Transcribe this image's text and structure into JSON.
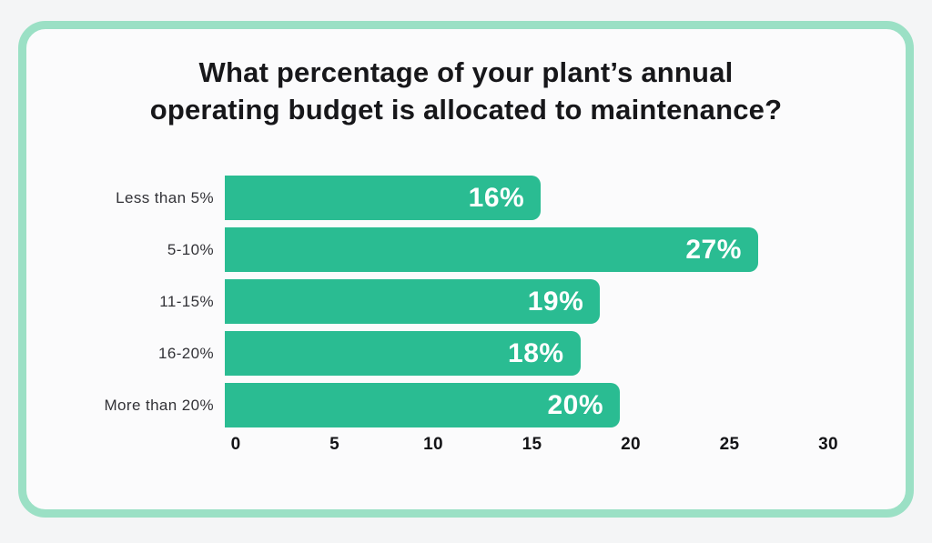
{
  "colors": {
    "background": "#f4f5f6",
    "card_background": "#fbfbfc",
    "card_border": "#9be0c5",
    "bar": "#2abc92",
    "title_text": "#17171a",
    "category_text": "#323237",
    "tick_text": "#141417",
    "value_text": "#ffffff"
  },
  "header": {
    "title_line1": "What percentage of your plant’s annual",
    "title_line2": "operating budget is allocated to maintenance?"
  },
  "chart_data": {
    "type": "bar",
    "orientation": "horizontal",
    "title": "What percentage of your plant’s annual operating budget is allocated to maintenance?",
    "categories": [
      "Less than 5%",
      "5-10%",
      "11-15%",
      "16-20%",
      "More than 20%"
    ],
    "values": [
      16,
      27,
      19,
      18,
      20
    ],
    "value_labels": [
      "16%",
      "27%",
      "19%",
      "18%",
      "20%"
    ],
    "x_ticks": [
      "0",
      "5",
      "10",
      "15",
      "20",
      "25",
      "30"
    ],
    "x_tick_values": [
      0,
      5,
      10,
      15,
      20,
      25,
      30
    ],
    "xlim": [
      0,
      30
    ],
    "xlabel": "",
    "ylabel": "",
    "grid": false,
    "legend": false,
    "bar_color": "#2abc92"
  }
}
